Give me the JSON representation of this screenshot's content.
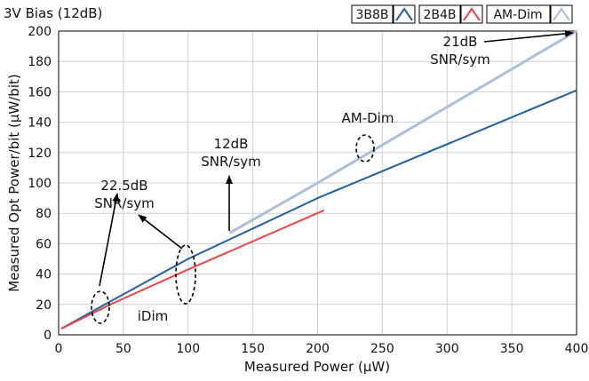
{
  "chart_data": {
    "type": "line",
    "title": "3V Bias (12dB)",
    "xlabel": "Measured Power (μW)",
    "ylabel": "Measured Opt Power/bit (μW/bit)",
    "xlim": [
      0,
      400
    ],
    "ylim": [
      0,
      200
    ],
    "xticks": [
      0,
      50,
      100,
      150,
      200,
      250,
      300,
      350,
      400
    ],
    "yticks": [
      0,
      20,
      40,
      60,
      80,
      100,
      120,
      140,
      160,
      180,
      200
    ],
    "grid": true,
    "legend_position": "top-right",
    "series": [
      {
        "name": "3B8B",
        "color": "#1f5fa6",
        "x": [
          2,
          40,
          100,
          200,
          400
        ],
        "y": [
          4,
          22,
          50,
          90,
          161
        ]
      },
      {
        "name": "2B4B",
        "color": "#ef4444",
        "x": [
          2,
          40,
          100,
          205
        ],
        "y": [
          4,
          20,
          43,
          82
        ]
      },
      {
        "name": "AM-Dim",
        "color": "#a9bfe0",
        "x": [
          132,
          200,
          300,
          400
        ],
        "y": [
          67,
          100,
          150,
          200
        ]
      }
    ],
    "annotations": [
      {
        "lines": [
          "21dB",
          "SNR/sym"
        ],
        "arrow_to": [
          400,
          200
        ]
      },
      {
        "lines": [
          "AM-Dim"
        ],
        "ellipse_at": [
          237,
          123
        ]
      },
      {
        "lines": [
          "12dB",
          "SNR/sym"
        ],
        "arrow_to": [
          131,
          104
        ]
      },
      {
        "lines": [
          "22.5dB",
          "SNR/sym"
        ],
        "ellipses_at": [
          [
            32,
            18
          ],
          [
            98,
            38
          ]
        ]
      },
      {
        "lines": [
          "iDim"
        ]
      }
    ]
  }
}
